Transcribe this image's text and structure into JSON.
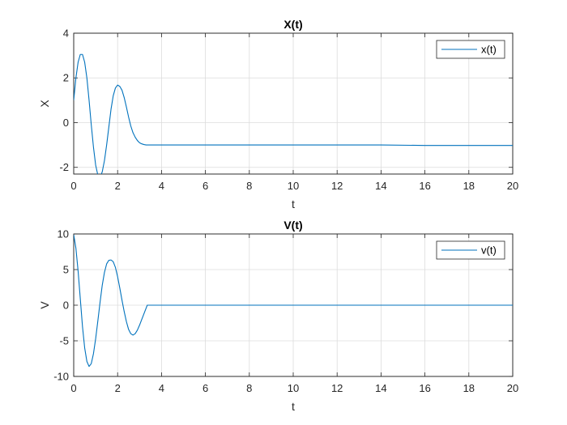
{
  "figure": {
    "background": "#ffffff",
    "line_color": "#0072bd",
    "grid_color": "#dcdcdc",
    "axis_color": "#262626"
  },
  "chart_data": [
    {
      "id": "x-plot",
      "type": "line",
      "title": "X(t)",
      "xlabel": "t",
      "ylabel": "X",
      "xlim": [
        0,
        20
      ],
      "ylim": [
        -2.3,
        4
      ],
      "xticks": [
        0,
        2,
        4,
        6,
        8,
        10,
        12,
        14,
        16,
        18,
        20
      ],
      "yticks": [
        -2,
        0,
        2,
        4
      ],
      "grid": true,
      "legend": "top-right",
      "series": [
        {
          "name": "x(t)",
          "x": [
            0,
            0.1,
            0.2,
            0.3,
            0.4,
            0.5,
            0.6,
            0.7,
            0.8,
            0.9,
            1.0,
            1.1,
            1.2,
            1.3,
            1.4,
            1.5,
            1.6,
            1.7,
            1.8,
            1.9,
            2.0,
            2.1,
            2.2,
            2.3,
            2.4,
            2.5,
            2.6,
            2.7,
            2.8,
            2.9,
            3.0,
            3.1,
            3.2,
            3.3,
            3.4,
            4,
            6,
            8,
            10,
            12,
            14,
            16,
            18,
            20
          ],
          "y": [
            1.0,
            2.0,
            2.7,
            3.05,
            3.05,
            2.7,
            2.0,
            1.0,
            -0.1,
            -1.1,
            -1.9,
            -2.35,
            -2.45,
            -2.2,
            -1.7,
            -1.0,
            -0.2,
            0.6,
            1.2,
            1.55,
            1.68,
            1.62,
            1.45,
            1.12,
            0.7,
            0.25,
            -0.15,
            -0.45,
            -0.65,
            -0.8,
            -0.9,
            -0.95,
            -0.98,
            -1.0,
            -1.0,
            -1.0,
            -1.0,
            -1.0,
            -1.0,
            -1.0,
            -1.0,
            -1.02,
            -1.02,
            -1.02
          ]
        }
      ]
    },
    {
      "id": "v-plot",
      "type": "line",
      "title": "V(t)",
      "xlabel": "t",
      "ylabel": "V",
      "xlim": [
        0,
        20
      ],
      "ylim": [
        -10,
        10
      ],
      "xticks": [
        0,
        2,
        4,
        6,
        8,
        10,
        12,
        14,
        16,
        18,
        20
      ],
      "yticks": [
        -10,
        -5,
        0,
        5,
        10
      ],
      "grid": true,
      "legend": "top-right",
      "series": [
        {
          "name": "v(t)",
          "x": [
            0,
            0.1,
            0.2,
            0.3,
            0.4,
            0.5,
            0.6,
            0.7,
            0.8,
            0.9,
            1.0,
            1.1,
            1.2,
            1.3,
            1.4,
            1.5,
            1.6,
            1.7,
            1.8,
            1.9,
            2.0,
            2.1,
            2.2,
            2.3,
            2.4,
            2.5,
            2.6,
            2.7,
            2.8,
            2.9,
            3.0,
            3.1,
            3.2,
            3.3,
            3.35,
            4,
            6,
            8,
            10,
            12,
            14,
            16,
            18,
            20
          ],
          "y": [
            9.9,
            8.0,
            4.8,
            0.9,
            -3.0,
            -6.0,
            -7.9,
            -8.6,
            -8.2,
            -6.8,
            -4.7,
            -2.2,
            0.4,
            2.8,
            4.6,
            5.8,
            6.3,
            6.35,
            6.1,
            5.3,
            4.0,
            2.4,
            0.7,
            -0.9,
            -2.3,
            -3.4,
            -4.0,
            -4.2,
            -4.0,
            -3.5,
            -2.8,
            -2.0,
            -1.2,
            -0.4,
            0.0,
            0.0,
            0.0,
            0.0,
            0.0,
            0.0,
            0.0,
            0.0,
            0.0,
            0.0
          ]
        }
      ]
    }
  ]
}
